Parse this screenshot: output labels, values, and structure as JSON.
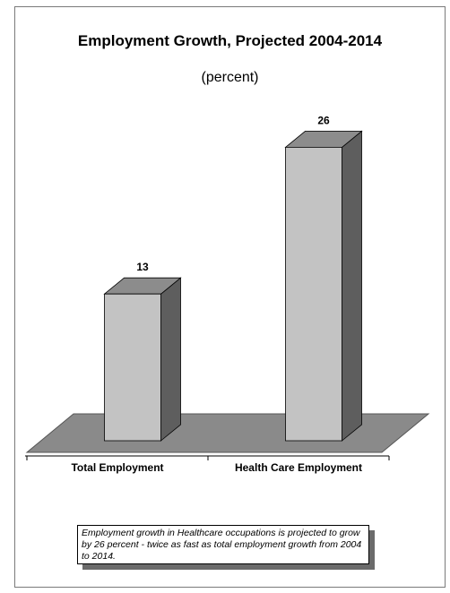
{
  "chart_data": {
    "type": "bar",
    "title": "Employment Growth, Projected 2004-2014",
    "subtitle": "(percent)",
    "categories": [
      "Total Employment",
      "Health Care Employment"
    ],
    "values": [
      13,
      26
    ],
    "data_labels": [
      "13",
      "26"
    ],
    "xlabel": "",
    "ylabel": "",
    "ylim": [
      0,
      30
    ],
    "grid": false,
    "legend": "none",
    "style": "3d",
    "colors": {
      "bar_front": "#c3c3c3",
      "bar_top": "#8c8c8c",
      "bar_side": "#5e5e5e",
      "floor": "#8a8a8a"
    }
  },
  "note": "Employment growth in Healthcare occupations is projected to grow by 26 percent - twice as fast as total employment growth from 2004 to 2014."
}
